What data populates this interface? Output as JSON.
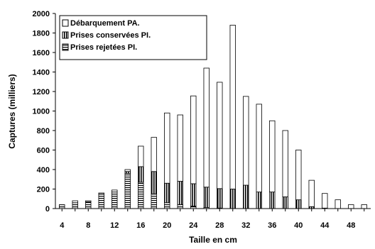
{
  "chart_data": {
    "type": "bar",
    "stacked": true,
    "xlabel": "Taille en cm",
    "ylabel": "Captures (milliers)",
    "ylim": [
      0,
      2000
    ],
    "yticks": [
      0,
      200,
      400,
      600,
      800,
      1000,
      1200,
      1400,
      1600,
      1800,
      2000
    ],
    "xticks": [
      4,
      8,
      12,
      16,
      20,
      24,
      28,
      32,
      36,
      40,
      44,
      48
    ],
    "grid": false,
    "legend_position": "top-left",
    "categories": [
      4,
      6,
      8,
      10,
      12,
      14,
      16,
      18,
      20,
      22,
      24,
      26,
      28,
      30,
      32,
      34,
      36,
      38,
      40,
      42,
      44,
      46,
      48,
      50
    ],
    "series": [
      {
        "name": "Prises rejetées PI.",
        "pattern": "horizontal",
        "values": [
          40,
          60,
          70,
          150,
          170,
          360,
          270,
          150,
          60,
          40,
          25,
          10,
          5,
          0,
          0,
          0,
          0,
          0,
          0,
          0,
          0,
          0,
          0,
          0
        ]
      },
      {
        "name": "Prises conservées PI.",
        "pattern": "vertical",
        "values": [
          0,
          0,
          0,
          0,
          0,
          20,
          160,
          230,
          200,
          240,
          230,
          210,
          200,
          200,
          240,
          170,
          170,
          120,
          90,
          20,
          5,
          0,
          0,
          0
        ]
      },
      {
        "name": "Débarquement PA.",
        "pattern": "white",
        "values": [
          0,
          20,
          10,
          10,
          20,
          20,
          210,
          350,
          720,
          680,
          900,
          1220,
          1090,
          1680,
          910,
          900,
          730,
          680,
          510,
          270,
          150,
          90,
          40,
          40
        ]
      }
    ]
  }
}
